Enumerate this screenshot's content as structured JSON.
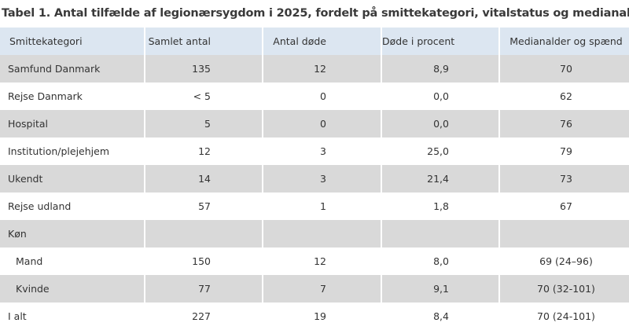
{
  "title": "Tabel 1. Antal tilfælde af legionærsygdom i 2025, fordelt på smittekategori, vitalstatus og medianalder",
  "table": {
    "header": [
      "Smittekategori",
      "Samlet antal",
      "Antal døde",
      "Døde i procent",
      "Medianalder og spænd"
    ],
    "rows": [
      [
        "Samfund Danmark",
        "135",
        "12",
        "8,9",
        "70"
      ],
      [
        "Rejse Danmark",
        "< 5",
        "0",
        "0,0",
        "62"
      ],
      [
        "Hospital",
        "5",
        "0",
        "0,0",
        "76"
      ],
      [
        "Institution/plejehjem",
        "12",
        "3",
        "25,0",
        "79"
      ],
      [
        "Ukendt",
        "14",
        "3",
        "21,4",
        "73"
      ],
      [
        "Rejse udland",
        "57",
        "1",
        "1,8",
        "67"
      ],
      [
        "Køn"
      ],
      [
        "Mand",
        "150",
        "12",
        "8,0",
        "69 (24–96)"
      ],
      [
        "Kvinde",
        "77",
        "7",
        "9,1",
        "70 (32-101)"
      ],
      [
        "I alt",
        "227",
        "19",
        "8,4",
        "70 (24-101)"
      ]
    ]
  }
}
